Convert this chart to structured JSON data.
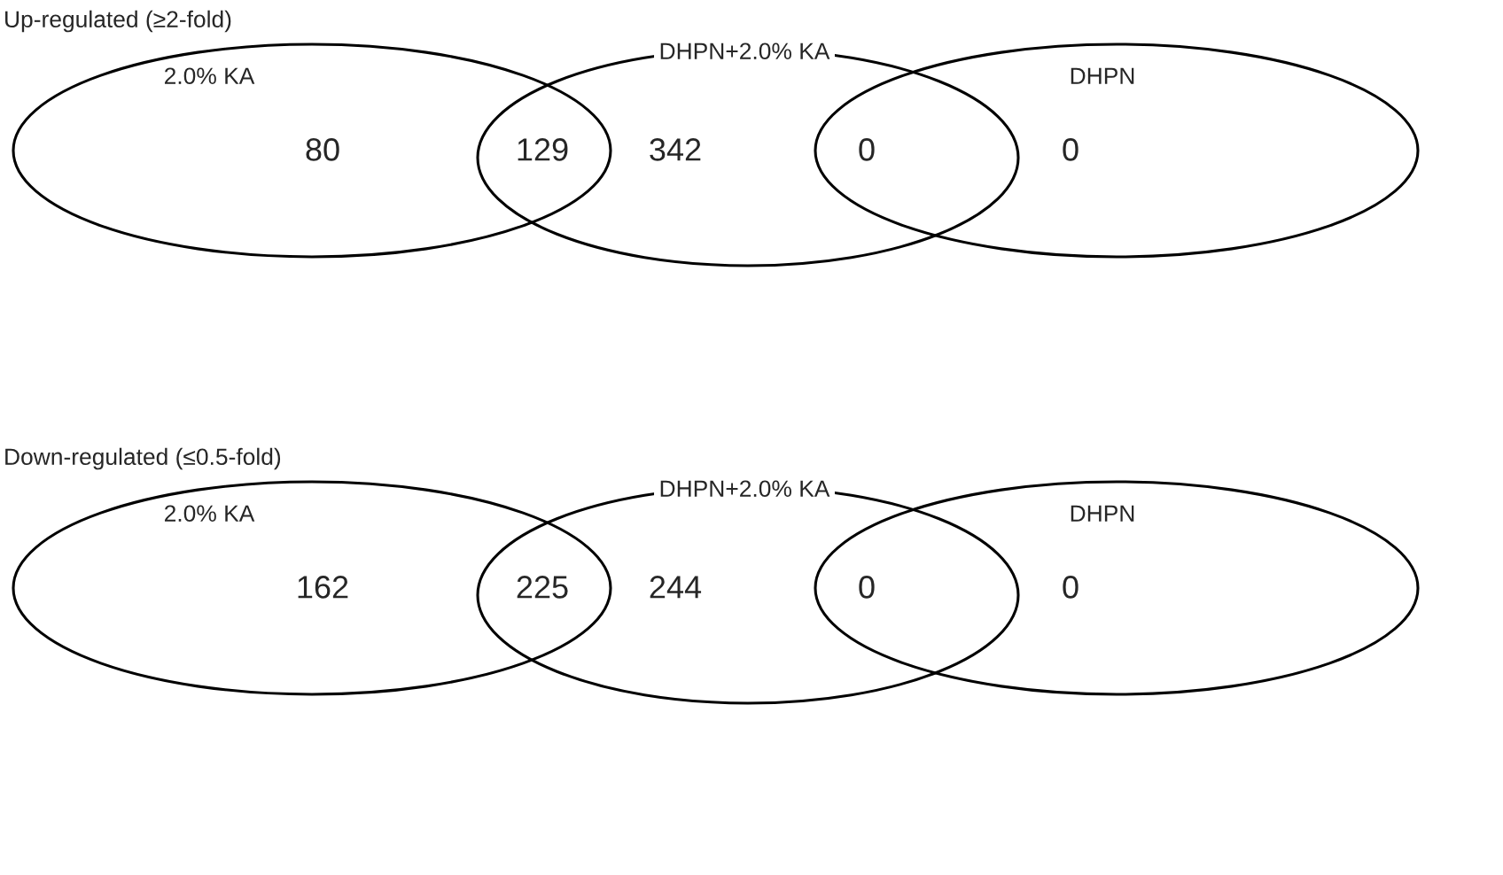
{
  "chart_data": [
    {
      "type": "other",
      "title": "Up-regulated (≥2-fold)",
      "annotations": [
        "2.0% KA",
        "DHPN+2.0% KA",
        "DHPN"
      ],
      "categories": [
        null,
        null,
        null,
        null,
        null
      ],
      "values": [
        80,
        129,
        342,
        0,
        0
      ],
      "data_labels": true
    },
    {
      "type": "other",
      "title": "Down-regulated (≤0.5-fold)",
      "annotations": [
        "2.0% KA",
        "DHPN+2.0% KA",
        "DHPN"
      ],
      "categories": [
        null,
        null,
        null,
        null,
        null
      ],
      "values": [
        162,
        225,
        244,
        0,
        0
      ],
      "data_labels": true
    }
  ]
}
